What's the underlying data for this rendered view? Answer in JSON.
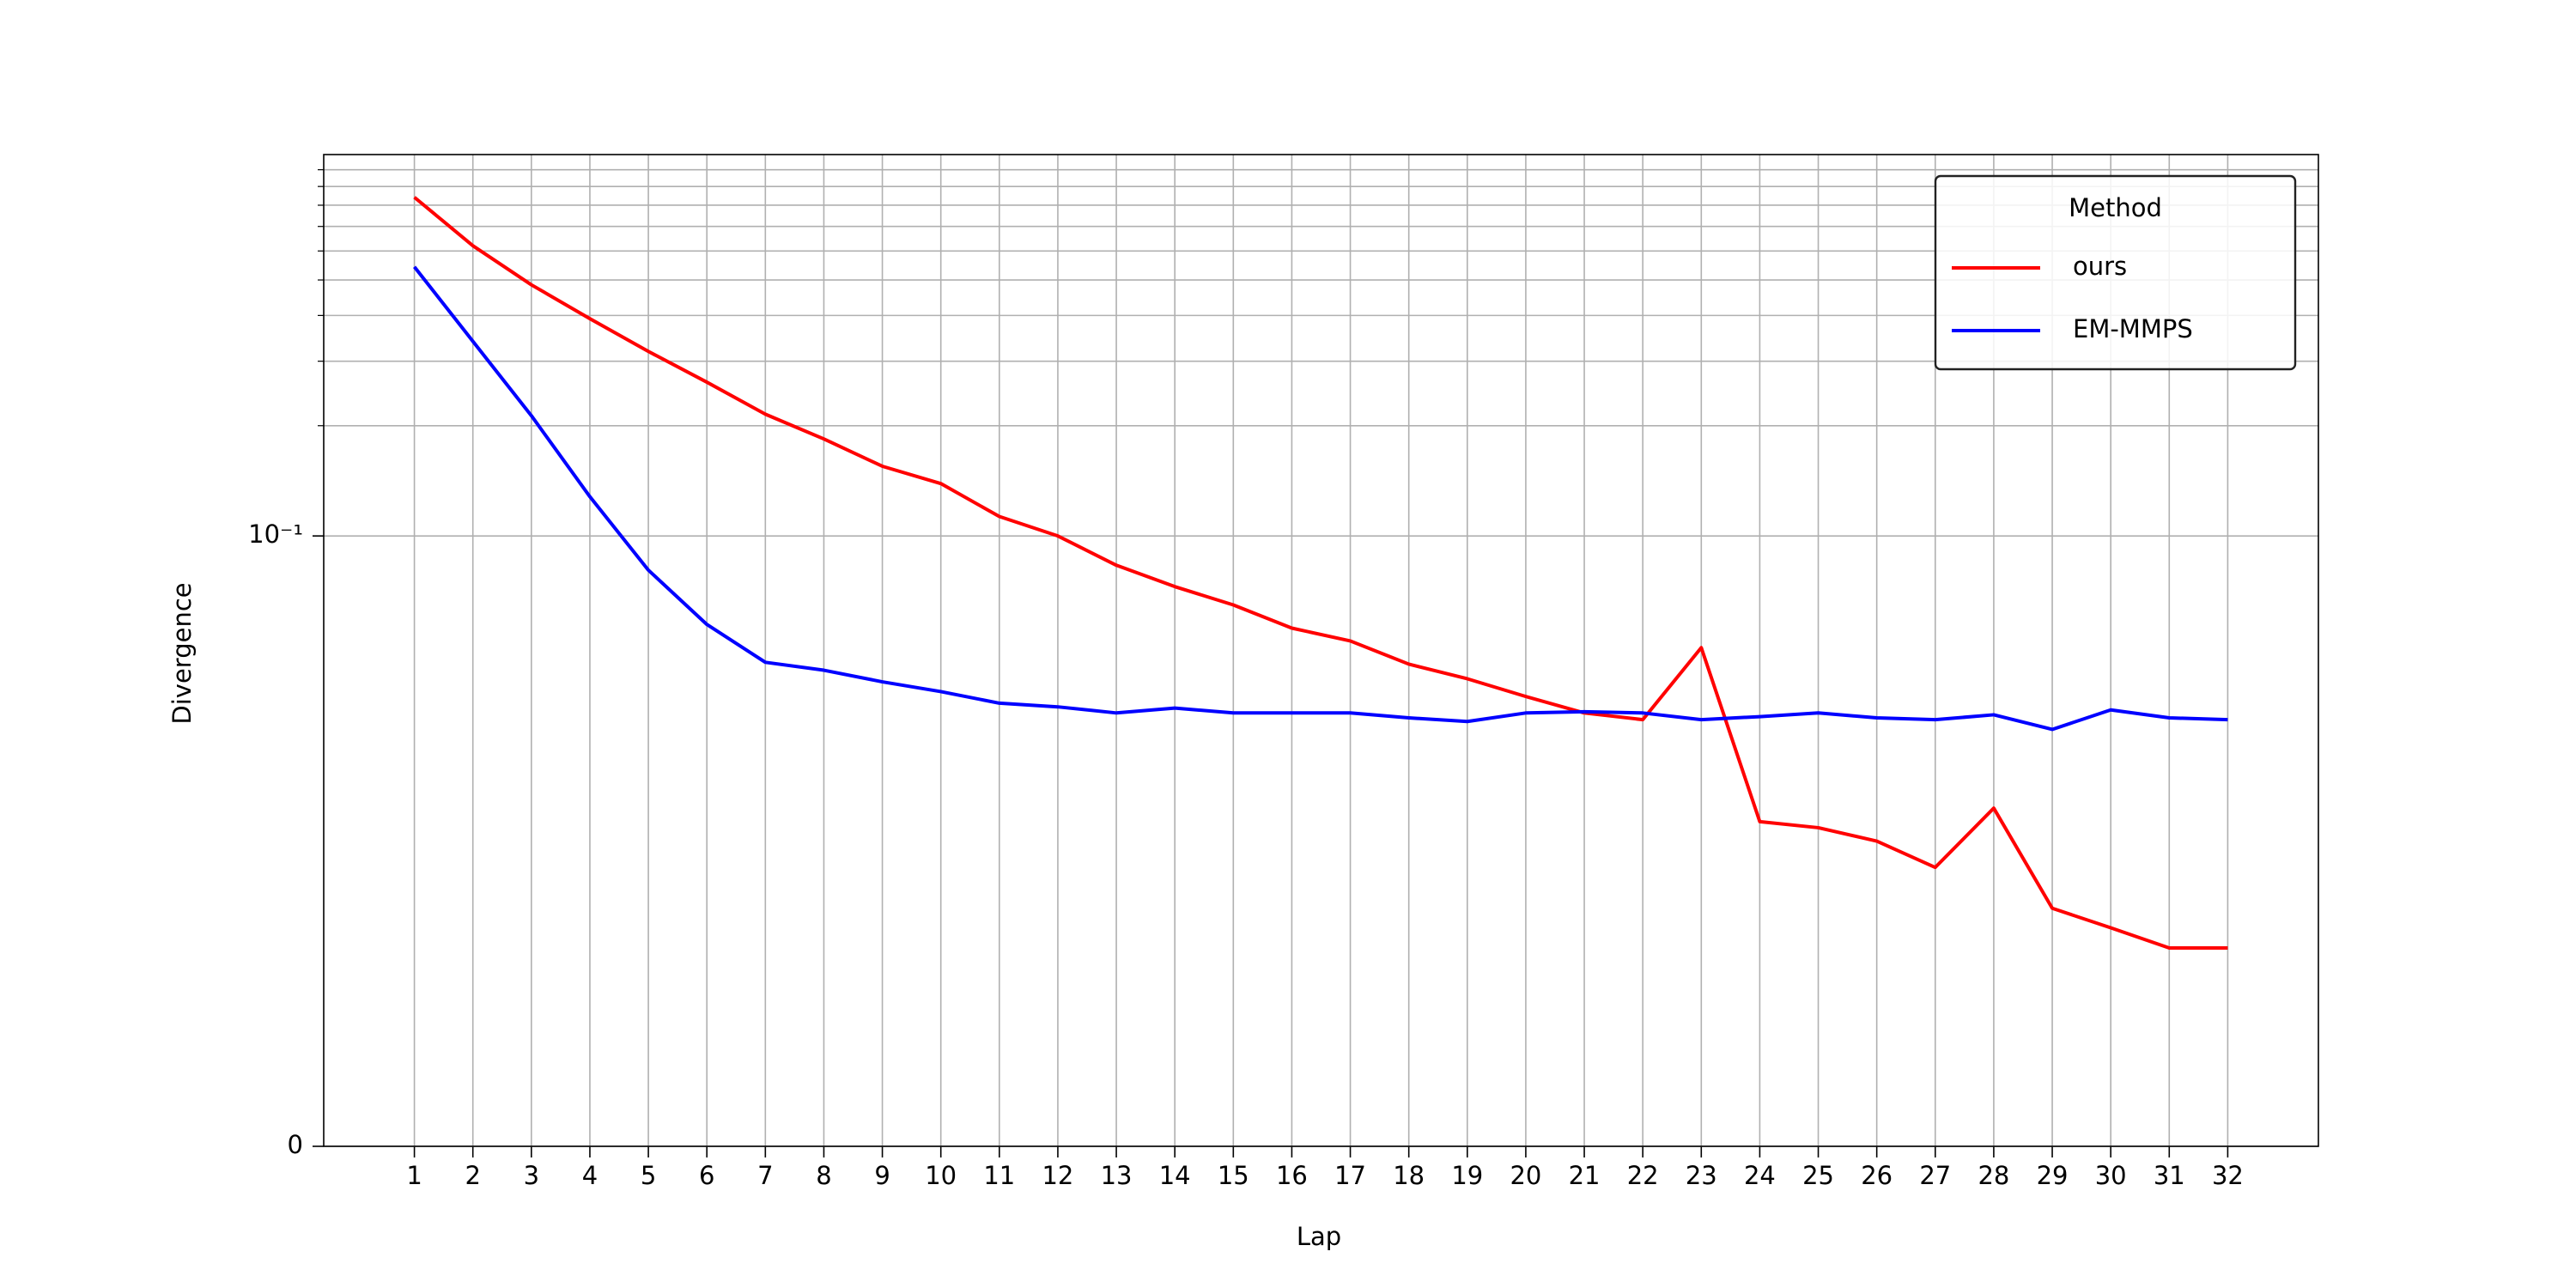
{
  "chart_data": {
    "type": "line",
    "x_label": "Lap",
    "y_label": "Divergence",
    "x": [
      1,
      2,
      3,
      4,
      5,
      6,
      7,
      8,
      9,
      10,
      11,
      12,
      13,
      14,
      15,
      16,
      17,
      18,
      19,
      20,
      21,
      22,
      23,
      24,
      25,
      26,
      27,
      28,
      29,
      30,
      31,
      32
    ],
    "series": [
      {
        "name": "ours",
        "color": "#ff0000",
        "values": [
          0.841,
          0.62,
          0.485,
          0.392,
          0.319,
          0.263,
          0.215,
          0.184,
          0.155,
          0.139,
          0.113,
          0.1,
          0.0952,
          0.0917,
          0.0887,
          0.0849,
          0.0828,
          0.079,
          0.0766,
          0.0737,
          0.071,
          0.0699,
          0.0817,
          0.0532,
          0.0522,
          0.05,
          0.0457,
          0.0554,
          0.039,
          0.0358,
          0.0325,
          0.0325
        ]
      },
      {
        "name": "EM-MMPS",
        "color": "#0000ff",
        "values": [
          0.543,
          0.34,
          0.213,
          0.128,
          0.0944,
          0.0855,
          0.0793,
          0.078,
          0.0761,
          0.0745,
          0.0726,
          0.072,
          0.071,
          0.0718,
          0.071,
          0.071,
          0.071,
          0.0702,
          0.0696,
          0.071,
          0.0712,
          0.071,
          0.0699,
          0.0704,
          0.071,
          0.0702,
          0.0699,
          0.0707,
          0.0683,
          0.0715,
          0.0702,
          0.0699
        ]
      }
    ],
    "xlim": [
      -0.55,
      33.55
    ],
    "xticks": [
      1,
      2,
      3,
      4,
      5,
      6,
      7,
      8,
      9,
      10,
      11,
      12,
      13,
      14,
      15,
      16,
      17,
      18,
      19,
      20,
      21,
      22,
      23,
      24,
      25,
      26,
      27,
      28,
      29,
      30,
      31,
      32
    ],
    "yscale": "symlog",
    "linthresh": 0.1,
    "linscale": 1.5,
    "ylim": [
      0,
      1.1
    ],
    "yticks": [
      0,
      {
        "value": 0.1,
        "label": "10⁻¹"
      }
    ],
    "yminorticks": [
      0.2,
      0.3,
      0.4,
      0.5,
      0.6,
      0.7,
      0.8,
      0.9,
      1.0
    ],
    "grid": true,
    "legend": {
      "title": "Method",
      "loc": "upper right"
    }
  }
}
